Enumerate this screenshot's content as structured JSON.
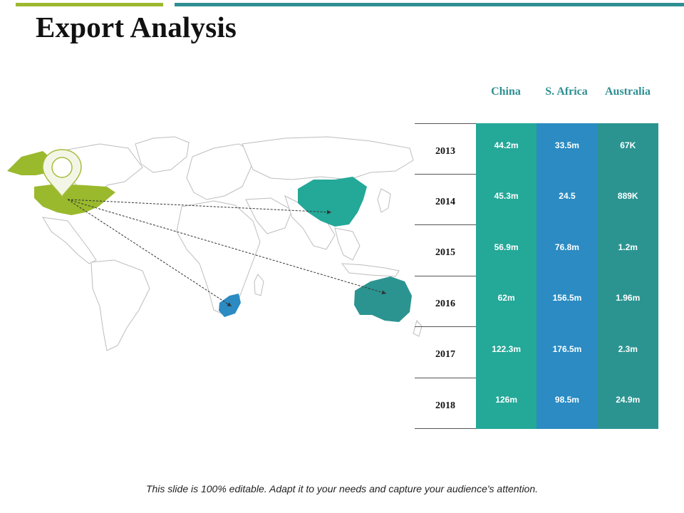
{
  "title": "Export Analysis",
  "colors": {
    "accent_green": "#9cb82e",
    "accent_teal": "#2e8f93",
    "china": "#24a898",
    "south_africa": "#2b8bc2",
    "australia": "#2b9491",
    "usa": "#9ab92d",
    "map_outline": "#bcbcbc"
  },
  "map": {
    "origin": "usa",
    "destinations": [
      "china",
      "south-africa",
      "australia"
    ],
    "origin_marker_icon": "map-pin-icon"
  },
  "table": {
    "columns": [
      "China",
      "S. Africa",
      "Australia"
    ],
    "rows": [
      {
        "year": "2013",
        "values": [
          "44.2m",
          "33.5m",
          "67K"
        ]
      },
      {
        "year": "2014",
        "values": [
          "45.3m",
          "24.5",
          "889K"
        ]
      },
      {
        "year": "2015",
        "values": [
          "56.9m",
          "76.8m",
          "1.2m"
        ]
      },
      {
        "year": "2016",
        "values": [
          "62m",
          "156.5m",
          "1.96m"
        ]
      },
      {
        "year": "2017",
        "values": [
          "122.3m",
          "176.5m",
          "2.3m"
        ]
      },
      {
        "year": "2018",
        "values": [
          "126m",
          "98.5m",
          "24.9m"
        ]
      }
    ]
  },
  "footer": "This slide is 100% editable. Adapt it to your needs and capture your audience's attention."
}
